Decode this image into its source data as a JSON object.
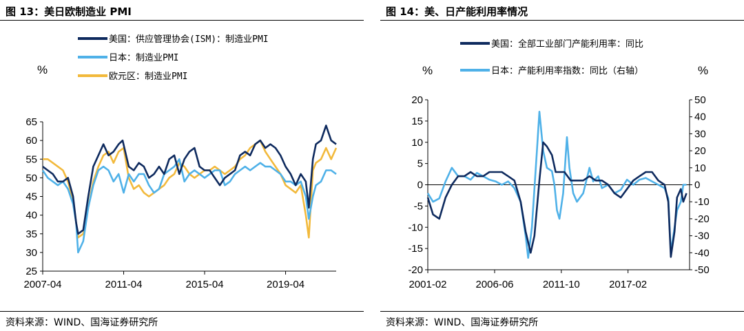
{
  "colors": {
    "navy": "#0e2a5e",
    "light_blue": "#4fb1e8",
    "gold": "#f2b93b"
  },
  "left": {
    "title": "图 13：美日欧制造业 PMI",
    "source": "资料来源：WIND、国海证券研究所",
    "chart_data": {
      "type": "line",
      "title": "美日欧制造业 PMI",
      "ylabel": "%",
      "ylim": [
        25,
        65
      ],
      "yticks": [
        "65",
        "60",
        "55",
        "50",
        "45",
        "40",
        "35",
        "30",
        "25"
      ],
      "xlim": [
        2007.25,
        2021.75
      ],
      "xticks": [
        {
          "x": 2007.25,
          "label": "2007-04"
        },
        {
          "x": 2011.25,
          "label": "2011-04"
        },
        {
          "x": 2015.25,
          "label": "2015-04"
        },
        {
          "x": 2019.25,
          "label": "2019-04"
        }
      ],
      "legend": [
        "美国：供应管理协会(ISM)：制造业PMI",
        "日本：制造业PMI",
        "欧元区：制造业PMI"
      ],
      "series": [
        {
          "name": "美国：供应管理协会(ISM)：制造业PMI",
          "color": "#0e2a5e",
          "x": [
            2007.25,
            2007.5,
            2007.75,
            2008.0,
            2008.25,
            2008.5,
            2008.75,
            2008.9,
            2009.0,
            2009.25,
            2009.5,
            2009.75,
            2010.0,
            2010.25,
            2010.5,
            2010.75,
            2011.0,
            2011.2,
            2011.5,
            2011.75,
            2012.0,
            2012.25,
            2012.5,
            2012.75,
            2013.0,
            2013.25,
            2013.5,
            2013.75,
            2014.0,
            2014.25,
            2014.5,
            2014.75,
            2015.0,
            2015.25,
            2015.5,
            2015.75,
            2016.0,
            2016.25,
            2016.5,
            2016.75,
            2017.0,
            2017.25,
            2017.5,
            2017.75,
            2018.0,
            2018.25,
            2018.5,
            2018.75,
            2019.0,
            2019.25,
            2019.5,
            2019.75,
            2020.0,
            2020.25,
            2020.4,
            2020.6,
            2020.75,
            2021.0,
            2021.25,
            2021.5,
            2021.75
          ],
          "y": [
            53,
            52,
            51,
            49,
            49,
            50,
            45,
            38,
            35,
            36,
            45,
            53,
            56,
            59,
            56,
            57,
            59,
            60,
            53,
            52,
            54,
            53,
            50,
            51,
            53,
            51,
            55,
            56,
            51,
            55,
            57,
            58,
            53,
            52,
            52,
            50,
            48,
            50,
            51,
            52,
            56,
            57,
            56,
            59,
            60,
            58,
            59,
            58,
            56,
            53,
            51,
            48,
            51,
            49,
            42,
            55,
            59,
            60,
            64,
            60,
            59
          ]
        },
        {
          "name": "日本：制造业PMI",
          "color": "#4fb1e8",
          "x": [
            2007.25,
            2007.5,
            2007.75,
            2008.0,
            2008.25,
            2008.5,
            2008.75,
            2008.9,
            2009.0,
            2009.25,
            2009.5,
            2009.75,
            2010.0,
            2010.25,
            2010.5,
            2010.75,
            2011.0,
            2011.25,
            2011.5,
            2011.75,
            2012.0,
            2012.25,
            2012.5,
            2012.75,
            2013.0,
            2013.25,
            2013.5,
            2013.75,
            2014.0,
            2014.25,
            2014.5,
            2014.75,
            2015.0,
            2015.25,
            2015.5,
            2015.75,
            2016.0,
            2016.25,
            2016.5,
            2016.75,
            2017.0,
            2017.25,
            2017.5,
            2017.75,
            2018.0,
            2018.25,
            2018.5,
            2018.75,
            2019.0,
            2019.25,
            2019.5,
            2019.75,
            2020.0,
            2020.25,
            2020.4,
            2020.6,
            2020.75,
            2021.0,
            2021.25,
            2021.5,
            2021.75
          ],
          "y": [
            52,
            50,
            49,
            48,
            49,
            47,
            43,
            38,
            30,
            33,
            42,
            48,
            52,
            53,
            52,
            49,
            51,
            46,
            51,
            49,
            51,
            51,
            48,
            46,
            47,
            51,
            52,
            53,
            55,
            49,
            51,
            52,
            51,
            50,
            51,
            52,
            52,
            48,
            49,
            51,
            52,
            53,
            52,
            53,
            54,
            53,
            53,
            52,
            51,
            49,
            49,
            48,
            49,
            45,
            39,
            45,
            48,
            49,
            52,
            52,
            51
          ]
        },
        {
          "name": "欧元区：制造业PMI",
          "color": "#f2b93b",
          "x": [
            2007.25,
            2007.5,
            2007.75,
            2008.0,
            2008.25,
            2008.5,
            2008.75,
            2008.9,
            2009.0,
            2009.25,
            2009.5,
            2009.75,
            2010.0,
            2010.25,
            2010.5,
            2010.75,
            2011.0,
            2011.25,
            2011.5,
            2011.75,
            2012.0,
            2012.25,
            2012.5,
            2012.75,
            2013.0,
            2013.25,
            2013.5,
            2013.75,
            2014.0,
            2014.25,
            2014.5,
            2014.75,
            2015.0,
            2015.25,
            2015.5,
            2015.75,
            2016.0,
            2016.25,
            2016.5,
            2016.75,
            2017.0,
            2017.25,
            2017.5,
            2017.75,
            2018.0,
            2018.25,
            2018.5,
            2018.75,
            2019.0,
            2019.25,
            2019.5,
            2019.75,
            2020.0,
            2020.25,
            2020.4,
            2020.6,
            2020.75,
            2021.0,
            2021.25,
            2021.5,
            2021.75
          ],
          "y": [
            55,
            55,
            54,
            53,
            52,
            49,
            44,
            38,
            34,
            35,
            42,
            49,
            53,
            56,
            57,
            54,
            57,
            58,
            50,
            47,
            48,
            46,
            45,
            46,
            47,
            48,
            50,
            51,
            54,
            53,
            51,
            50,
            51,
            52,
            52,
            53,
            52,
            51,
            52,
            53,
            55,
            56,
            58,
            59,
            60,
            57,
            55,
            53,
            51,
            48,
            47,
            46,
            48,
            40,
            34,
            52,
            54,
            55,
            58,
            55,
            58
          ]
        }
      ]
    }
  },
  "right": {
    "title": "图 14：美、日产能利用率情况",
    "source": "资料来源：WIND、国海证券研究所",
    "chart_data": {
      "type": "line",
      "title": "美、日产能利用率情况",
      "ylabel_left": "%",
      "ylabel_right": "%",
      "ylim_left": [
        -20,
        20
      ],
      "ylim_right": [
        -50,
        50
      ],
      "yticks_left": [
        "20",
        "15",
        "10",
        "5",
        "0",
        "-5",
        "-10",
        "-15",
        "-20"
      ],
      "yticks_right": [
        "50",
        "40",
        "30",
        "20",
        "10",
        "0",
        "-10",
        "-20",
        "-30",
        "-40",
        "-50"
      ],
      "xlim": [
        2001.08,
        2022.0
      ],
      "xticks": [
        {
          "x": 2001.08,
          "label": "2001-02"
        },
        {
          "x": 2006.42,
          "label": "2006-06"
        },
        {
          "x": 2011.75,
          "label": "2011-10"
        },
        {
          "x": 2017.08,
          "label": "2017-02"
        }
      ],
      "legend": [
        "美国：全部工业部门产能利用率：同比",
        "日本：产能利用率指数：同比（右轴）"
      ],
      "series": [
        {
          "name": "美国：全部工业部门产能利用率：同比",
          "color": "#0e2a5e",
          "axis": "left",
          "x": [
            2001.08,
            2001.5,
            2002.0,
            2002.5,
            2003.0,
            2003.5,
            2004.0,
            2004.5,
            2005.0,
            2005.5,
            2006.0,
            2006.5,
            2007.0,
            2007.5,
            2008.0,
            2008.5,
            2008.9,
            2009.3,
            2009.6,
            2010.0,
            2010.3,
            2010.6,
            2011.0,
            2011.3,
            2011.7,
            2012.0,
            2012.5,
            2013.0,
            2013.5,
            2014.0,
            2014.5,
            2015.0,
            2015.5,
            2016.0,
            2016.5,
            2017.0,
            2017.5,
            2018.0,
            2018.5,
            2019.0,
            2019.5,
            2020.0,
            2020.3,
            2020.5,
            2020.8,
            2021.0,
            2021.3,
            2021.5,
            2021.75
          ],
          "y": [
            -3,
            -7,
            -8,
            -3,
            0,
            2,
            2,
            3,
            2,
            2,
            3,
            3,
            3,
            2,
            1,
            -4,
            -11,
            -16,
            -12,
            1,
            10,
            9,
            7,
            3,
            3,
            3,
            1,
            1,
            1,
            2,
            1,
            1,
            0,
            -2,
            -3,
            -1,
            1,
            2,
            3,
            3,
            1,
            0,
            -4,
            -17,
            -11,
            -3,
            -1,
            -4,
            -2
          ]
        },
        {
          "name": "日本：产能利用率指数：同比（右轴）",
          "color": "#4fb1e8",
          "axis": "right",
          "x": [
            2001.08,
            2001.5,
            2002.0,
            2002.5,
            2003.0,
            2003.5,
            2004.0,
            2004.5,
            2005.0,
            2005.5,
            2006.0,
            2006.5,
            2007.0,
            2007.5,
            2008.0,
            2008.5,
            2008.9,
            2009.1,
            2009.4,
            2009.8,
            2010.0,
            2010.3,
            2010.6,
            2011.0,
            2011.2,
            2011.4,
            2011.6,
            2011.9,
            2012.2,
            2012.4,
            2012.7,
            2013.0,
            2013.5,
            2014.0,
            2014.3,
            2014.7,
            2015.0,
            2015.5,
            2016.0,
            2016.5,
            2017.0,
            2017.5,
            2018.0,
            2018.5,
            2019.0,
            2019.5,
            2020.0,
            2020.3,
            2020.5,
            2020.8,
            2021.0,
            2021.3,
            2021.5,
            2021.75
          ],
          "y": [
            -5,
            -10,
            -8,
            2,
            10,
            5,
            5,
            3,
            7,
            5,
            3,
            2,
            0,
            2,
            -2,
            -10,
            -30,
            -43,
            -25,
            20,
            43,
            20,
            10,
            8,
            0,
            -15,
            -20,
            -5,
            28,
            10,
            -5,
            -10,
            -5,
            10,
            2,
            5,
            -2,
            0,
            -5,
            -3,
            3,
            0,
            3,
            4,
            2,
            0,
            -2,
            -8,
            -40,
            -25,
            -15,
            -10,
            0,
            0
          ]
        }
      ]
    }
  }
}
